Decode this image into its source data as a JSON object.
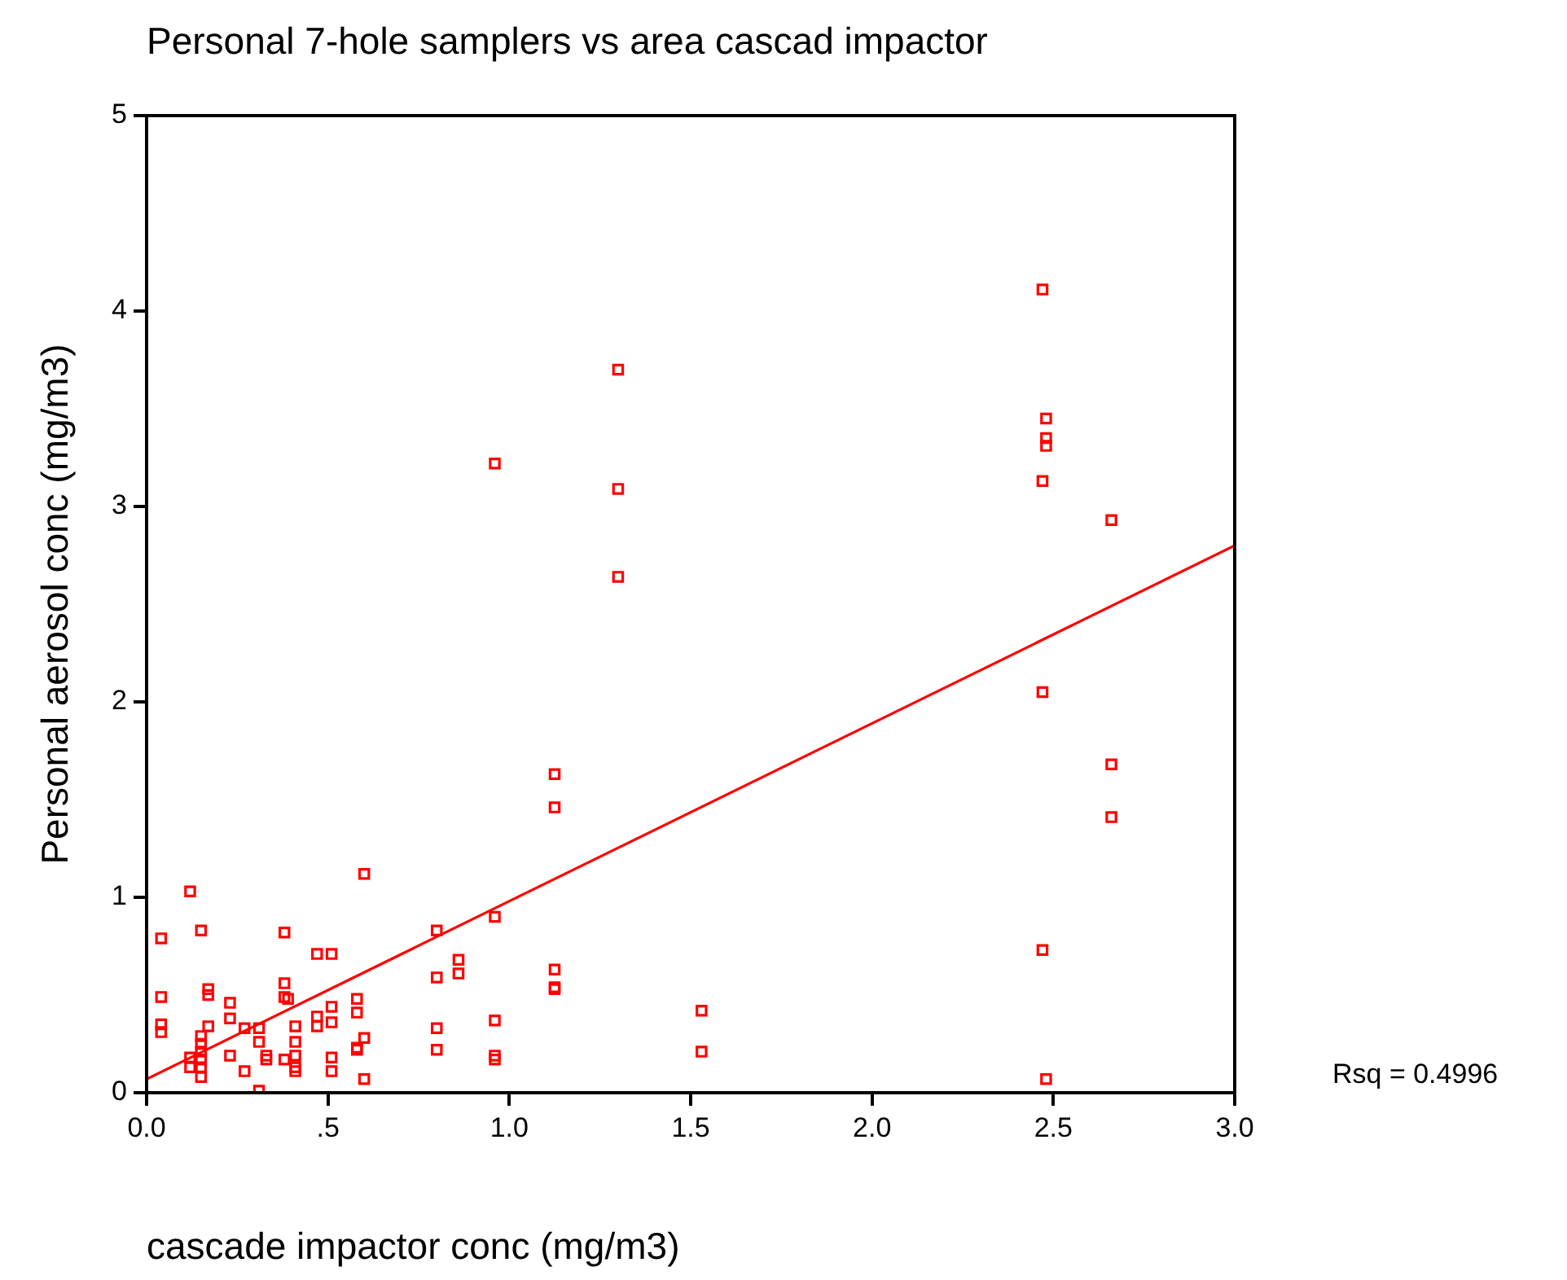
{
  "chart_data": {
    "type": "scatter",
    "title": "Personal 7-hole samplers vs area cascad impactor",
    "xlabel": "cascade impactor conc (mg/m3)",
    "ylabel": "Personal aerosol conc (mg/m3)",
    "xlim": [
      0,
      3
    ],
    "xticks": [
      {
        "value": 0,
        "label": "0.0"
      },
      {
        "value": 0.5,
        "label": ".5"
      },
      {
        "value": 1,
        "label": "1.0"
      },
      {
        "value": 1.5,
        "label": "1.5"
      },
      {
        "value": 2,
        "label": "2.0"
      },
      {
        "value": 2.5,
        "label": "2.5"
      },
      {
        "value": 3,
        "label": "3.0"
      }
    ],
    "ylim": [
      0,
      5
    ],
    "yticks": [
      0,
      1,
      2,
      3,
      4,
      5
    ],
    "legend": false,
    "marker": "square",
    "annotations": [
      "Rsq = 0.4996"
    ],
    "series": [
      {
        "type": "scatter",
        "color": "#ff0000",
        "x": [
          0.04,
          0.04,
          0.04,
          0.04,
          0.12,
          0.12,
          0.12,
          0.15,
          0.15,
          0.15,
          0.15,
          0.15,
          0.15,
          0.15,
          0.17,
          0.17,
          0.17,
          0.23,
          0.23,
          0.23,
          0.27,
          0.27,
          0.31,
          0.31,
          0.31,
          0.33,
          0.33,
          0.38,
          0.38,
          0.38,
          0.39,
          0.38,
          0.41,
          0.41,
          0.41,
          0.41,
          0.41,
          0.47,
          0.51,
          0.47,
          0.47,
          0.51,
          0.51,
          0.51,
          0.51,
          0.58,
          0.58,
          0.58,
          0.58,
          0.6,
          0.6,
          0.6,
          0.8,
          0.8,
          0.8,
          0.8,
          0.86,
          0.86,
          0.96,
          0.96,
          0.96,
          0.96,
          0.96,
          1.125,
          1.125,
          1.125,
          1.125,
          1.125,
          1.3,
          1.3,
          1.3,
          1.53,
          1.53,
          2.47,
          2.48,
          2.48,
          2.48,
          2.47,
          2.47,
          2.47,
          2.48,
          2.66,
          2.66,
          2.66
        ],
        "values": [
          0.79,
          0.49,
          0.35,
          0.31,
          1.03,
          0.18,
          0.13,
          0.83,
          0.29,
          0.25,
          0.21,
          0.17,
          0.13,
          0.08,
          0.53,
          0.5,
          0.34,
          0.46,
          0.38,
          0.19,
          0.11,
          0.33,
          0.33,
          0.26,
          0.01,
          0.17,
          0.19,
          0.82,
          0.56,
          0.49,
          0.48,
          0.17,
          0.34,
          0.26,
          0.19,
          0.11,
          0.13,
          0.71,
          0.71,
          0.39,
          0.34,
          0.44,
          0.36,
          0.18,
          0.11,
          0.48,
          0.41,
          0.23,
          0.22,
          1.12,
          0.28,
          0.07,
          0.83,
          0.59,
          0.33,
          0.22,
          0.68,
          0.61,
          0.9,
          0.37,
          0.19,
          0.17,
          3.22,
          1.63,
          1.46,
          0.63,
          0.54,
          0.53,
          3.7,
          3.09,
          2.64,
          0.42,
          0.21,
          4.11,
          3.45,
          3.35,
          3.31,
          3.13,
          2.05,
          0.73,
          0.07,
          2.93,
          1.68,
          1.41
        ]
      },
      {
        "type": "line",
        "color": "#ff0000",
        "marker": "none",
        "x": [
          0,
          3
        ],
        "values": [
          0.07,
          2.8
        ]
      }
    ]
  }
}
